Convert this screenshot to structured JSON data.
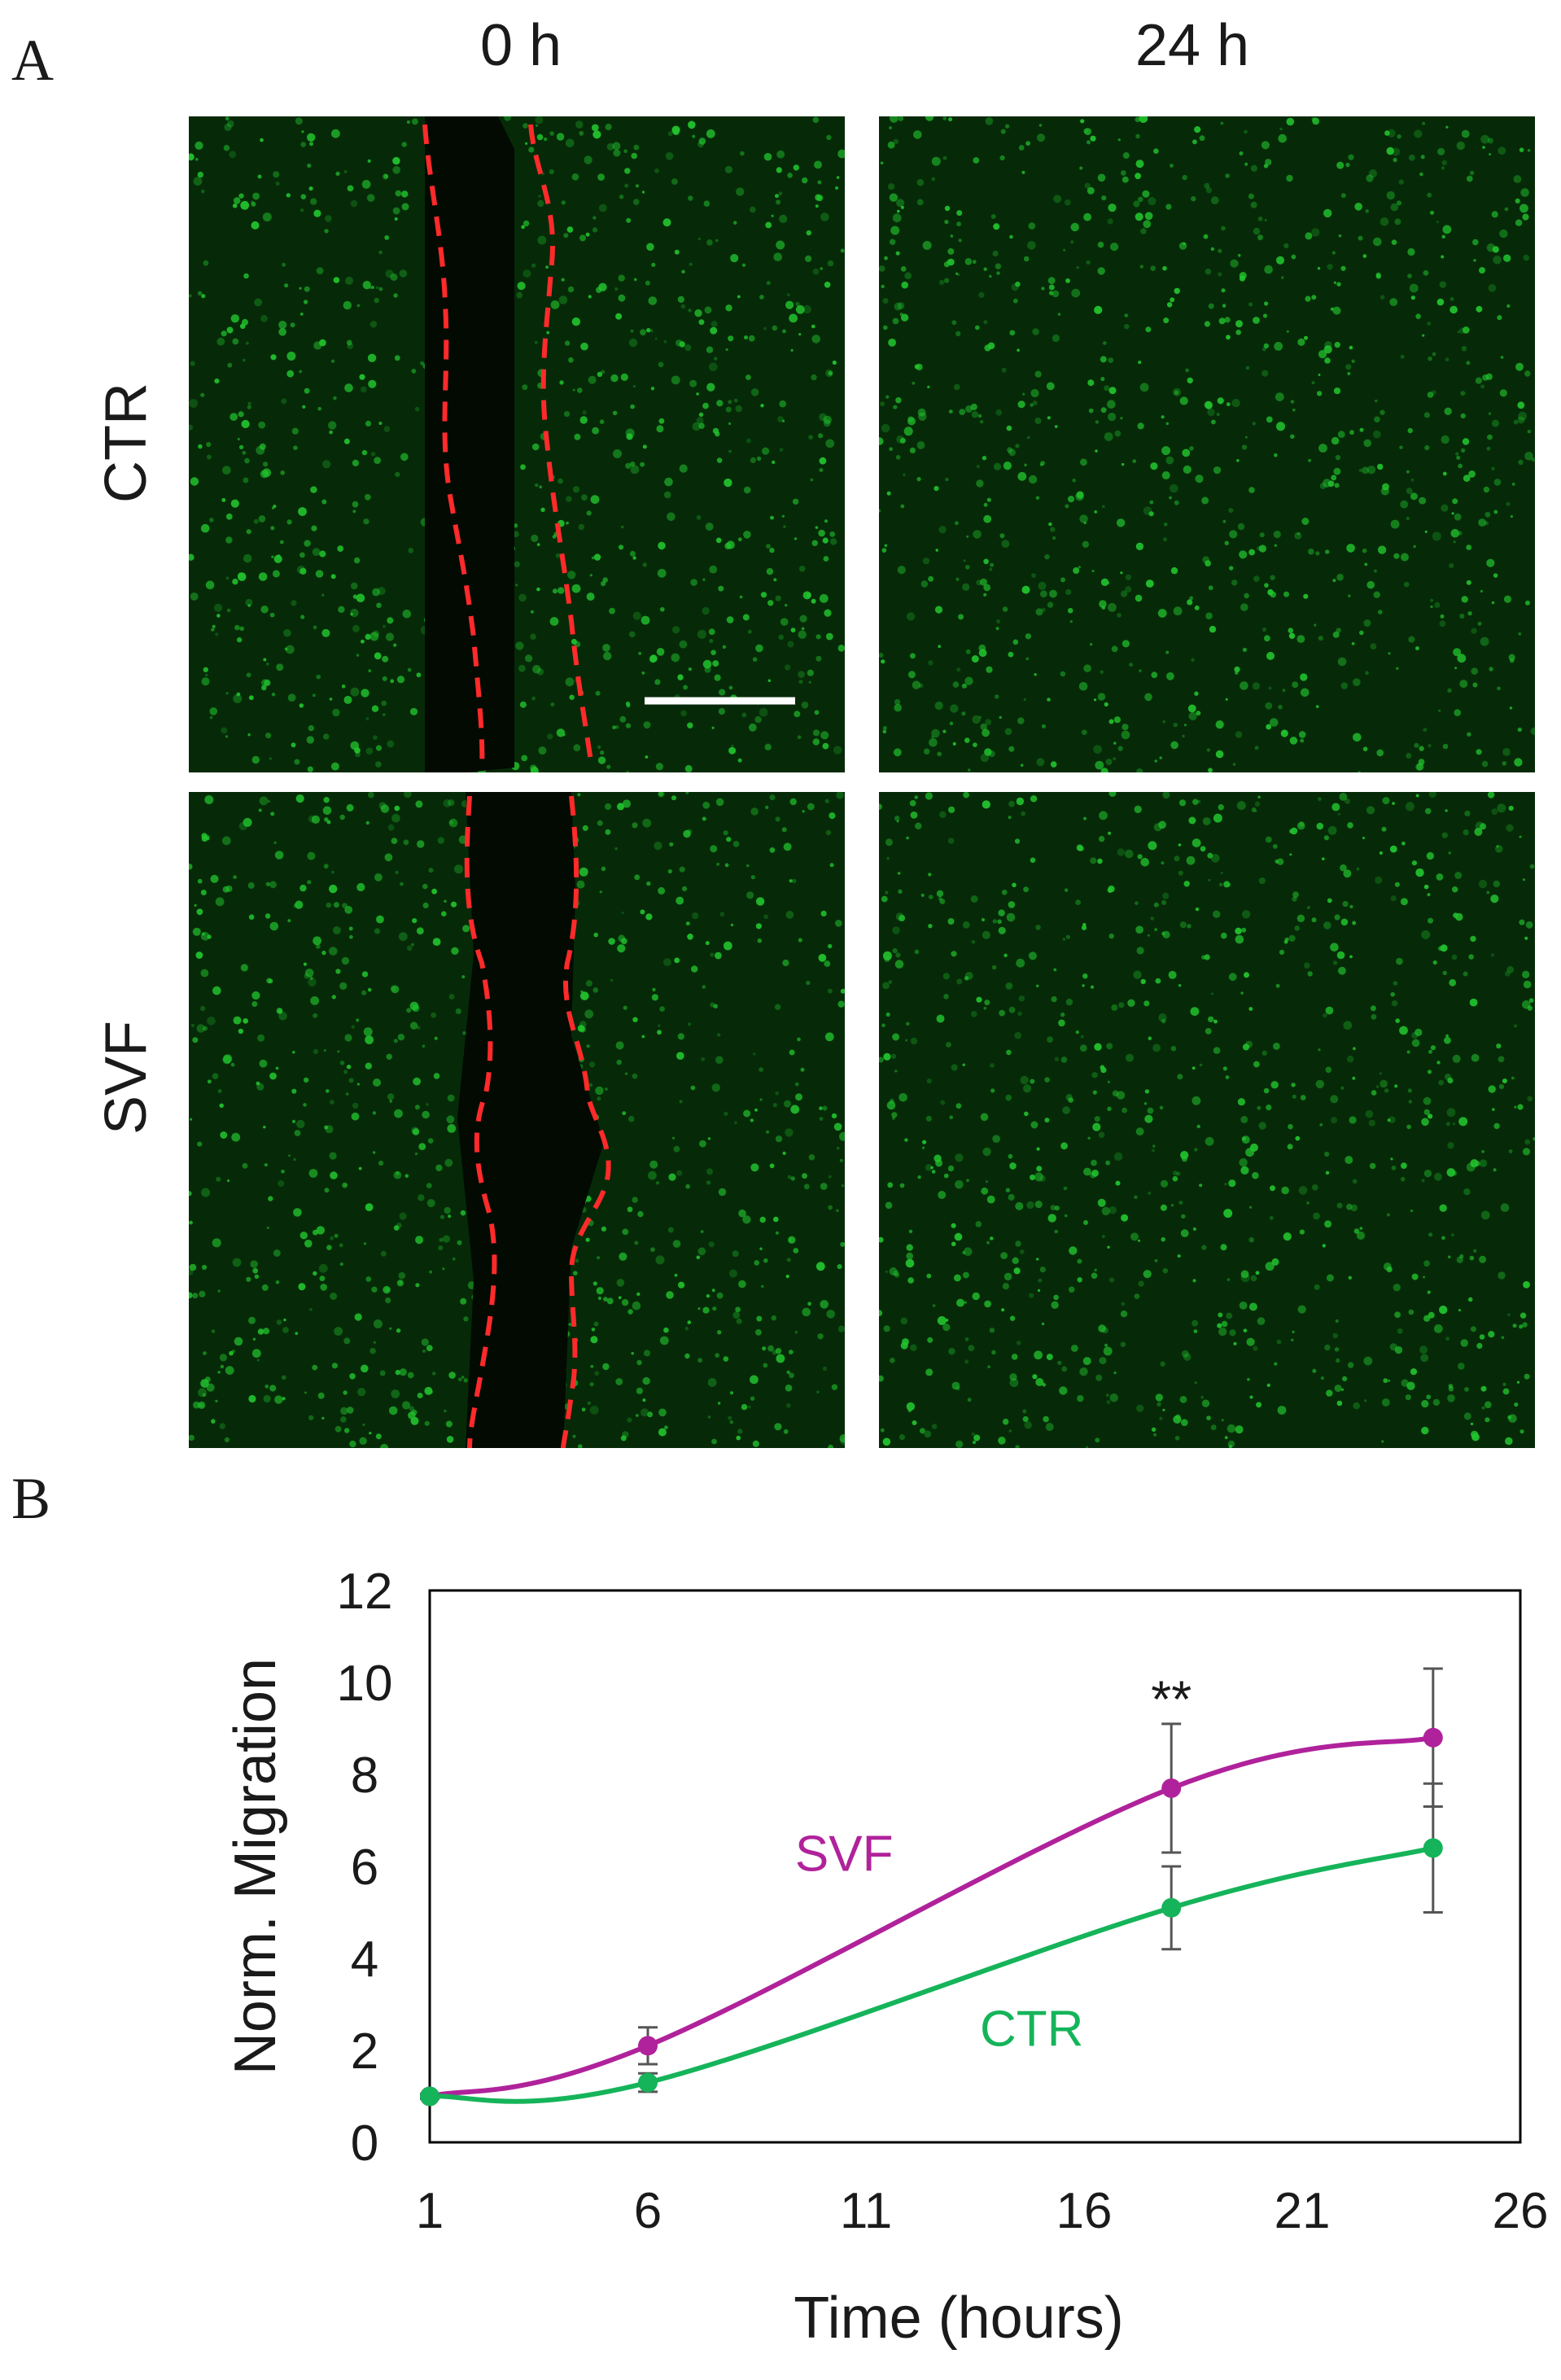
{
  "panel_a": {
    "letter": "A",
    "columns": [
      "0 h",
      "24 h"
    ],
    "rows": [
      "CTR",
      "SVF"
    ],
    "colors": {
      "cells": "#22c32e",
      "background": "#062a08",
      "wound_edge": "#ff2a2a",
      "scale_bar": "#ffffff"
    }
  },
  "panel_b": {
    "letter": "B"
  },
  "chart_data": {
    "type": "line",
    "xlabel": "Time (hours)",
    "ylabel": "Norm. Migration",
    "x_ticks": [
      1,
      6,
      11,
      16,
      21,
      26
    ],
    "y_ticks": [
      0,
      2,
      4,
      6,
      8,
      10,
      12
    ],
    "xlim": [
      1,
      26
    ],
    "ylim": [
      0,
      12
    ],
    "grid": false,
    "legend": "inline",
    "annotation": {
      "text": "**",
      "x": 18,
      "y": 9.6
    },
    "series": [
      {
        "name": "SVF",
        "color": "#b0229b",
        "x": [
          1,
          6,
          18,
          24
        ],
        "y": [
          1.0,
          2.1,
          7.7,
          8.8
        ],
        "err": [
          0.05,
          0.4,
          1.4,
          1.5
        ],
        "label_pos": {
          "x": 10.5,
          "y": 5.9
        }
      },
      {
        "name": "CTR",
        "color": "#15b45a",
        "x": [
          1,
          6,
          18,
          24
        ],
        "y": [
          1.0,
          1.3,
          5.1,
          6.4
        ],
        "err": [
          0.05,
          0.2,
          0.9,
          1.4
        ],
        "label_pos": {
          "x": 14.8,
          "y": 2.1
        }
      }
    ]
  }
}
